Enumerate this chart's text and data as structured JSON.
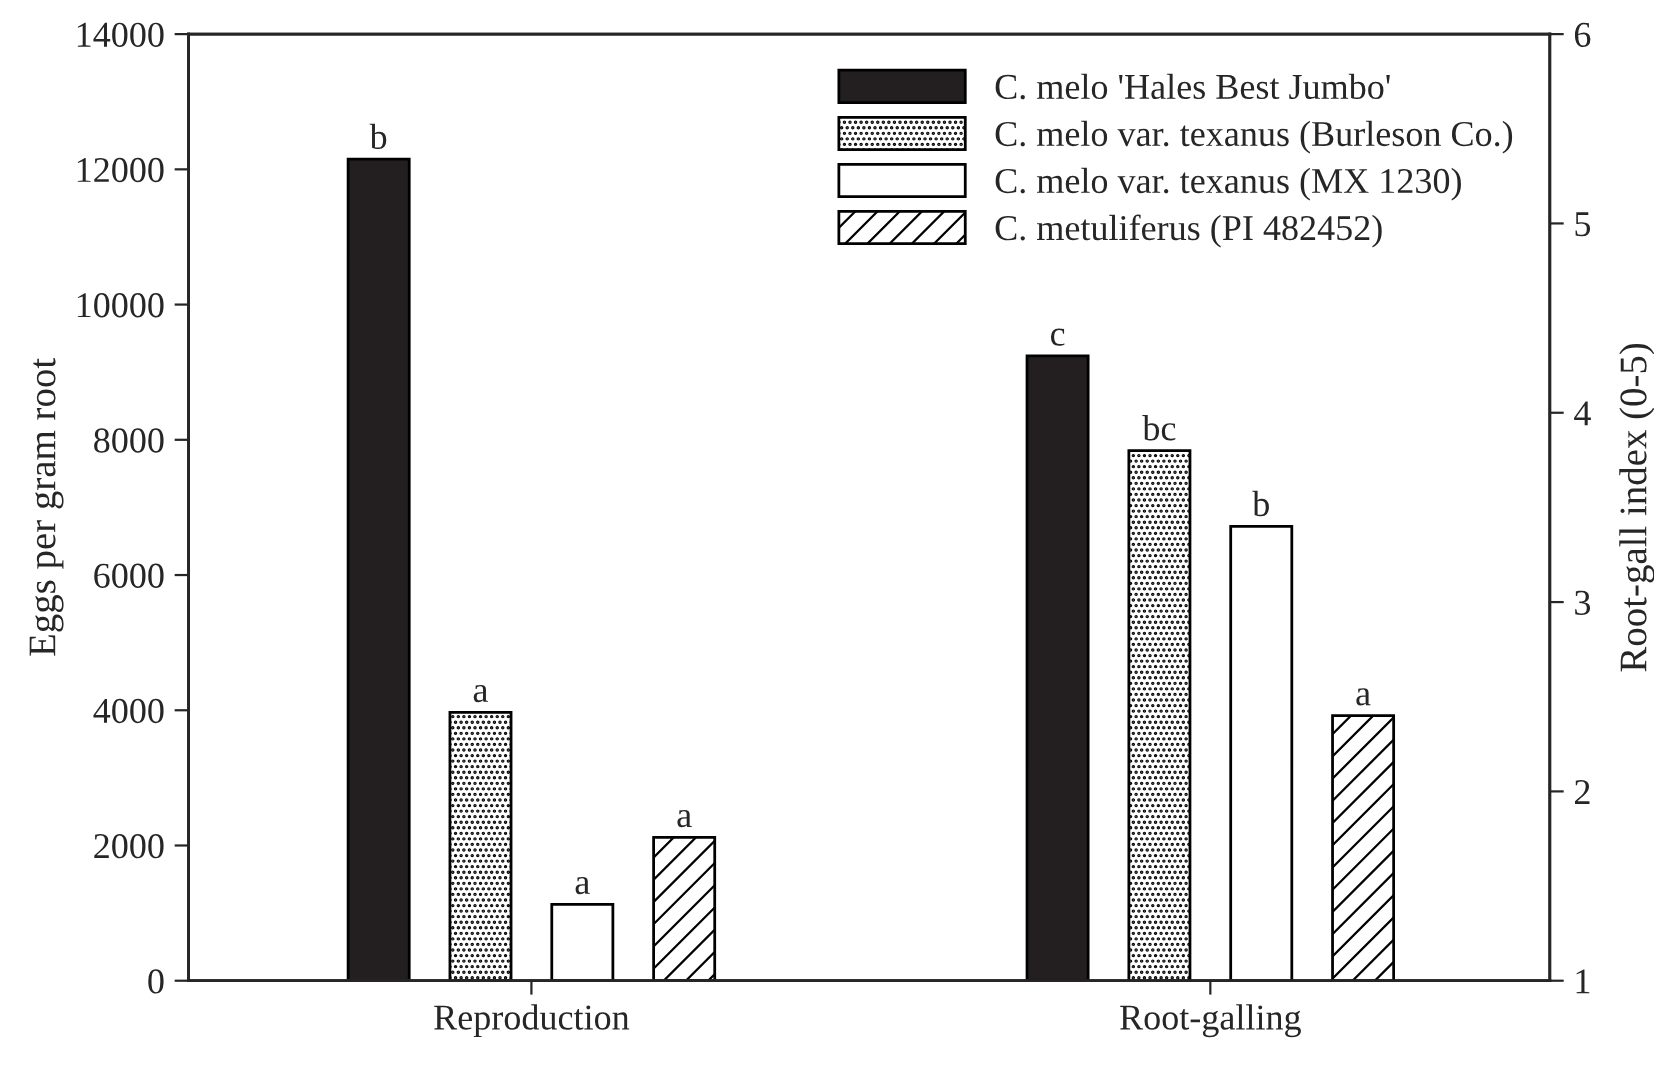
{
  "chart_data": {
    "type": "bar",
    "xlabel": null,
    "ylabel": "Eggs per gram root",
    "y2label": "Root-gall index (0-5)",
    "categories": [
      "Reproduction",
      "Root-galling"
    ],
    "ylim": [
      0,
      14000
    ],
    "yticks": [
      0,
      2000,
      4000,
      6000,
      8000,
      10000,
      12000,
      14000
    ],
    "y2lim": [
      1,
      6
    ],
    "y2ticks": [
      1,
      2,
      3,
      4,
      5,
      6
    ],
    "legend": "top right",
    "series": [
      {
        "name": "C. melo 'Hales Best Jumbo'",
        "color": "#231f20",
        "values": [
          12150,
          null
        ],
        "value_labels": [
          "b",
          null
        ]
      },
      {
        "name": "C. melo var. texanus (Burleson Co.)",
        "color": "#000000",
        "values": [
          3970,
          null
        ],
        "value_labels": [
          "a",
          null
        ]
      },
      {
        "name": "C. melo var. texanus (MX 1230)",
        "color": "#ffffff",
        "values": [
          1130,
          null
        ],
        "value_labels": [
          "a",
          null
        ]
      },
      {
        "name": "C. metuliferus (PI 482452)",
        "color": "#000000",
        "values": [
          2120,
          null
        ],
        "value_labels": [
          "a",
          null
        ]
      },
      {
        "color": "#231f20",
        "axis": "y2",
        "values": [
          null,
          4.3
        ],
        "value_labels": [
          null,
          "c"
        ]
      },
      {
        "color": "#000000",
        "axis": "y2",
        "values": [
          null,
          3.8
        ],
        "value_labels": [
          null,
          "bc"
        ]
      },
      {
        "color": "#ffffff",
        "axis": "y2",
        "values": [
          null,
          3.4
        ],
        "value_labels": [
          null,
          "b"
        ]
      },
      {
        "color": "#000000",
        "axis": "y2",
        "values": [
          null,
          2.4
        ],
        "value_labels": [
          null,
          "a"
        ]
      }
    ]
  }
}
